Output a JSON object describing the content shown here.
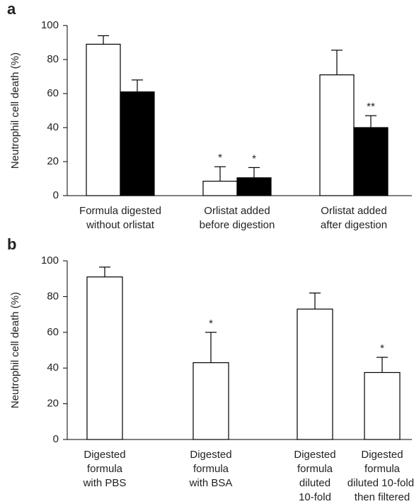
{
  "chart_data": [
    {
      "type": "bar",
      "panel_label": "a",
      "ylabel": "Neutrophil cell death (%)",
      "categories": [
        "Formula digested\nwithout orlistat",
        "Orlistat added\nbefore digestion",
        "Orlistat added\nafter digestion"
      ],
      "series": [
        {
          "color": "#ffffff",
          "values": [
            89,
            8.5,
            71
          ],
          "errors": [
            5,
            8.5,
            14.5
          ],
          "labels": [
            null,
            "*",
            null
          ]
        },
        {
          "color": "#000000",
          "values": [
            61,
            10.5,
            40
          ],
          "errors": [
            7,
            6,
            7
          ],
          "labels": [
            null,
            "*",
            "**"
          ]
        }
      ],
      "ylim": [
        0,
        100
      ],
      "yticks": [
        0,
        20,
        40,
        60,
        80,
        100
      ]
    },
    {
      "type": "bar",
      "panel_label": "b",
      "ylabel": "Neutrophil cell death (%)",
      "categories": [
        "Digested\nformula\nwith PBS",
        "Digested\nformula\nwith BSA",
        "Digested\nformula\ndiluted\n10-fold",
        "Digested\nformula\ndiluted 10-fold,\nthen filtered"
      ],
      "series": [
        {
          "color": "#ffffff",
          "values": [
            91,
            43,
            73,
            37.5
          ],
          "errors": [
            5.5,
            17,
            9,
            8.5
          ],
          "labels": [
            null,
            "*",
            null,
            "*"
          ]
        }
      ],
      "ylim": [
        0,
        100
      ],
      "yticks": [
        0,
        20,
        40,
        60,
        80,
        100
      ]
    }
  ]
}
